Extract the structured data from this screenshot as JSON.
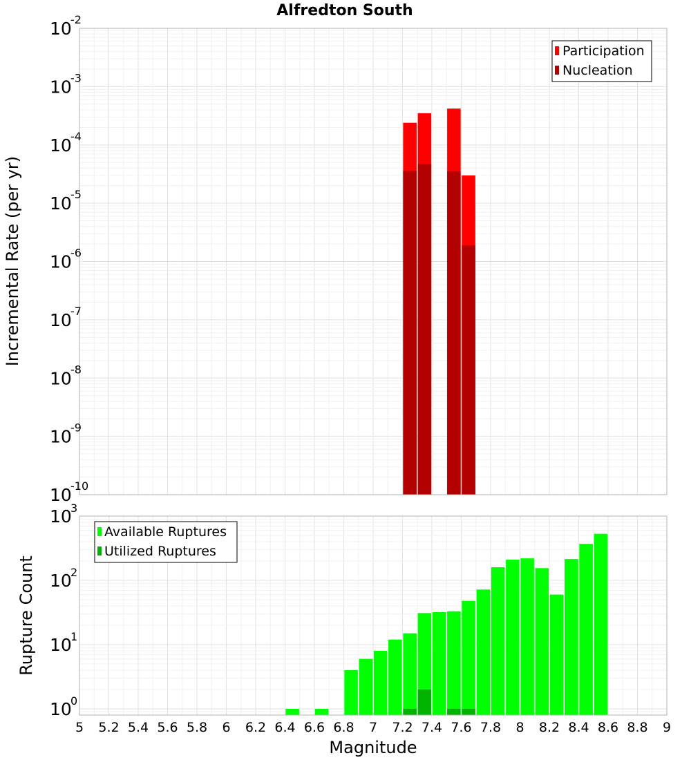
{
  "colors": {
    "participation": "#ff0000",
    "nucleation": "#b30000",
    "available": "#00ff00",
    "utilized": "#00b300"
  },
  "chart_data": [
    {
      "type": "bar",
      "title": "Alfredton South",
      "xlabel": "",
      "ylabel": "Incremental Rate (per yr)",
      "yscale": "log",
      "ylim": [
        1e-10,
        0.01
      ],
      "xlim": [
        5,
        9
      ],
      "grid": true,
      "legend_position": "top-right",
      "y_tick_exponents": [
        "-10",
        "-9",
        "-8",
        "-7",
        "-6",
        "-5",
        "-4",
        "-3",
        "-2"
      ],
      "series": [
        {
          "name": "Participation",
          "x": [
            7.25,
            7.35,
            7.55,
            7.65
          ],
          "values": [
            0.00024,
            0.00035,
            0.00042,
            3e-05
          ]
        },
        {
          "name": "Nucleation",
          "x": [
            7.25,
            7.35,
            7.55,
            7.65
          ],
          "values": [
            3.6e-05,
            4.7e-05,
            3.5e-05,
            1.9e-06
          ]
        }
      ]
    },
    {
      "type": "bar",
      "xlabel": "Magnitude",
      "ylabel": "Rupture Count",
      "yscale": "log",
      "ylim": [
        0.8,
        1000
      ],
      "xlim": [
        5,
        9
      ],
      "grid": true,
      "legend_position": "top-left",
      "y_tick_exponents": [
        "0",
        "1",
        "2",
        "3"
      ],
      "x_ticks": [
        "5",
        "5.2",
        "5.4",
        "5.6",
        "5.8",
        "6",
        "6.2",
        "6.4",
        "6.6",
        "6.8",
        "7",
        "7.2",
        "7.4",
        "7.6",
        "7.8",
        "8",
        "8.2",
        "8.4",
        "8.6",
        "8.8",
        "9"
      ],
      "series": [
        {
          "name": "Available Ruptures",
          "x": [
            6.45,
            6.65,
            6.85,
            6.95,
            7.05,
            7.15,
            7.25,
            7.35,
            7.45,
            7.55,
            7.65,
            7.75,
            7.85,
            7.95,
            8.05,
            8.15,
            8.25,
            8.35,
            8.45,
            8.55
          ],
          "values": [
            1,
            1,
            4,
            6,
            8,
            12,
            15,
            31,
            32,
            33,
            48,
            72,
            160,
            210,
            220,
            155,
            60,
            215,
            370,
            530
          ]
        },
        {
          "name": "Utilized Ruptures",
          "x": [
            7.25,
            7.35,
            7.55,
            7.65
          ],
          "values": [
            1,
            2,
            1,
            1
          ]
        }
      ]
    }
  ]
}
